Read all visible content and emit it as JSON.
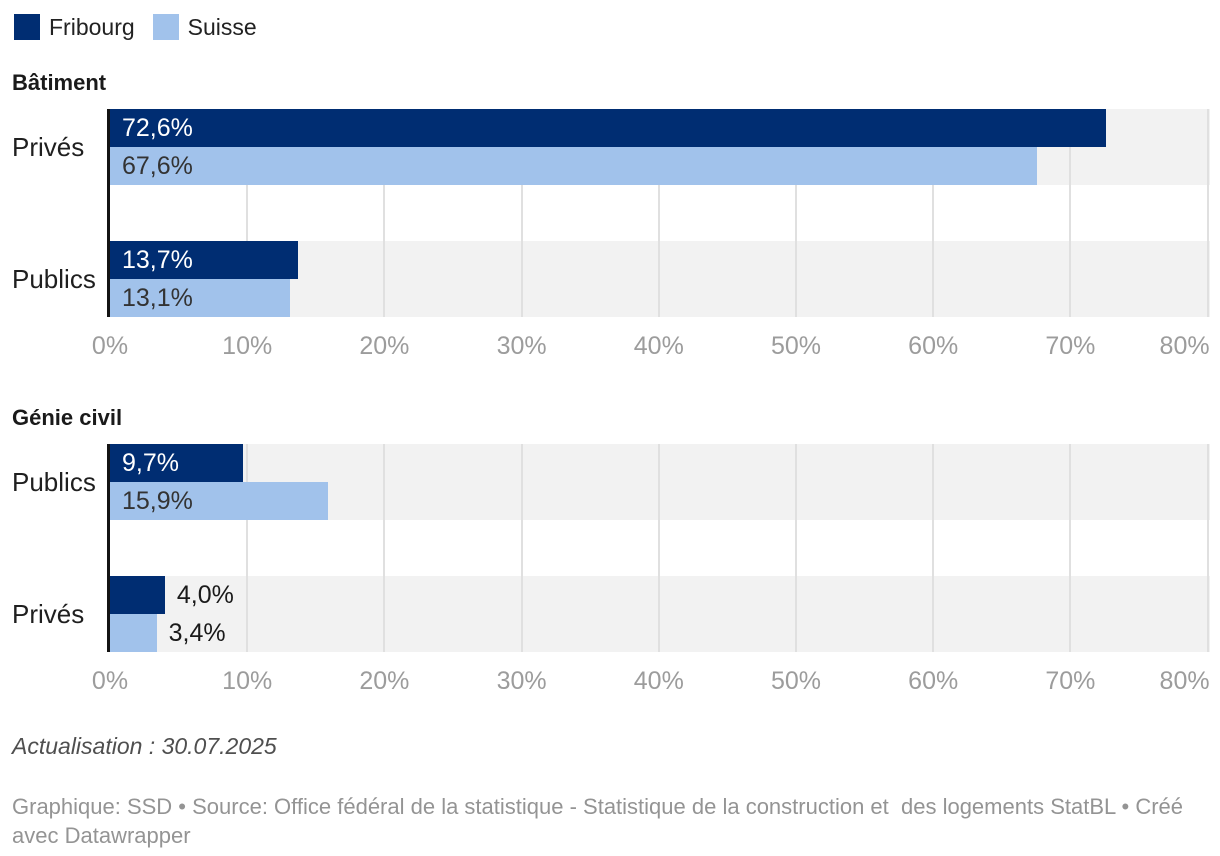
{
  "legend": {
    "items": [
      {
        "id": "fribourg",
        "label": "Fribourg",
        "color": "#002d72"
      },
      {
        "id": "suisse",
        "label": "Suisse",
        "color": "#a1c2eb"
      }
    ]
  },
  "chart_data": [
    {
      "type": "bar",
      "orientation": "horizontal",
      "title": "Bâtiment",
      "categories": [
        "Privés",
        "Publics"
      ],
      "series": [
        {
          "name": "Fribourg",
          "color": "#002d72",
          "values": [
            72.6,
            13.7
          ],
          "labels": [
            "72,6%",
            "13,7%"
          ]
        },
        {
          "name": "Suisse",
          "color": "#a1c2eb",
          "values": [
            67.6,
            13.1
          ],
          "labels": [
            "67,6%",
            "13,1%"
          ]
        }
      ],
      "xlim": [
        0,
        80
      ],
      "x_ticks": [
        {
          "value": 0,
          "label": "0%"
        },
        {
          "value": 10,
          "label": "10%"
        },
        {
          "value": 20,
          "label": "20%"
        },
        {
          "value": 30,
          "label": "30%"
        },
        {
          "value": 40,
          "label": "40%"
        },
        {
          "value": 50,
          "label": "50%"
        },
        {
          "value": 60,
          "label": "60%"
        },
        {
          "value": 70,
          "label": "70%"
        },
        {
          "value": 80,
          "label": "80%"
        }
      ],
      "grid": true,
      "legend_position": "top"
    },
    {
      "type": "bar",
      "orientation": "horizontal",
      "title": "Génie civil",
      "categories": [
        "Publics",
        "Privés"
      ],
      "series": [
        {
          "name": "Fribourg",
          "color": "#002d72",
          "values": [
            9.7,
            4.0
          ],
          "labels": [
            "9,7%",
            "4,0%"
          ]
        },
        {
          "name": "Suisse",
          "color": "#a1c2eb",
          "values": [
            15.9,
            3.4
          ],
          "labels": [
            "15,9%",
            "3,4%"
          ]
        }
      ],
      "xlim": [
        0,
        80
      ],
      "x_ticks": [
        {
          "value": 0,
          "label": "0%"
        },
        {
          "value": 10,
          "label": "10%"
        },
        {
          "value": 20,
          "label": "20%"
        },
        {
          "value": 30,
          "label": "30%"
        },
        {
          "value": 40,
          "label": "40%"
        },
        {
          "value": 50,
          "label": "50%"
        },
        {
          "value": 60,
          "label": "60%"
        },
        {
          "value": 70,
          "label": "70%"
        },
        {
          "value": 80,
          "label": "80%"
        }
      ],
      "grid": true
    }
  ],
  "footer": {
    "update_note": "Actualisation : 30.07.2025",
    "credit": "Graphique: SSD • Source: Office fédéral de la statistique - Statistique de la construction et  des logements StatBL • Créé avec Datawrapper"
  },
  "colors": {
    "fribourg": "#002d72",
    "suisse": "#a1c2eb",
    "row_band": "#f2f2f2",
    "gridline": "#e0e0e0",
    "axis_line": "#141414",
    "axis_label": "#9c9c9c",
    "text_dark": "#1a1a1a",
    "label_on_dark": "#ffffff",
    "label_on_light": "#333333",
    "note_text": "#4f4f4f",
    "credit_text": "#949494"
  }
}
